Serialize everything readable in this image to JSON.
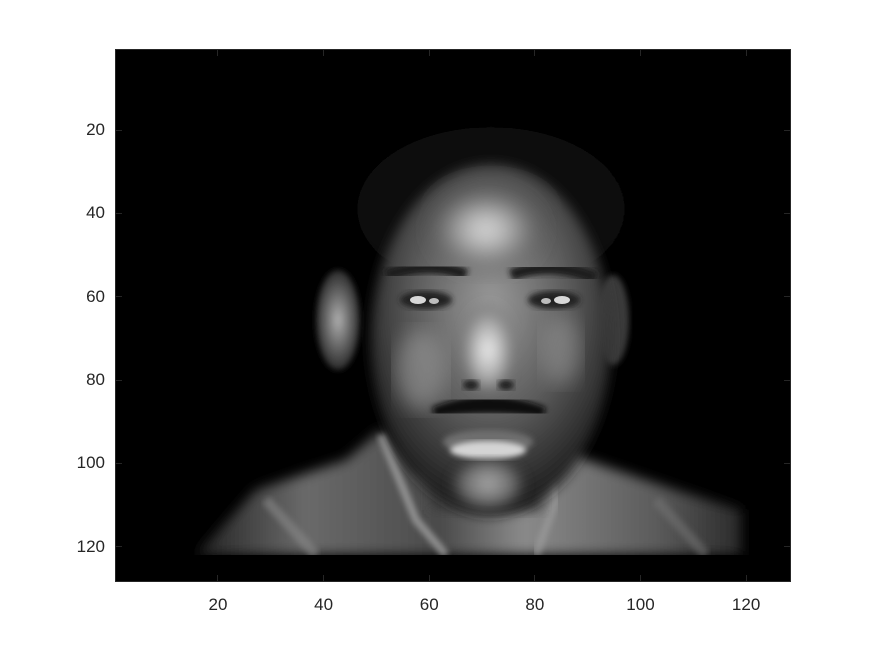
{
  "image": {
    "subject": "grayscale-face",
    "colormap": "gray",
    "background": "#000000",
    "axis_color": "#262626"
  },
  "axes": {
    "x_ticks": [
      {
        "label": "20",
        "value": 20
      },
      {
        "label": "40",
        "value": 40
      },
      {
        "label": "60",
        "value": 60
      },
      {
        "label": "80",
        "value": 80
      },
      {
        "label": "100",
        "value": 100
      },
      {
        "label": "120",
        "value": 120
      }
    ],
    "y_ticks": [
      {
        "label": "20",
        "value": 20
      },
      {
        "label": "40",
        "value": 40
      },
      {
        "label": "60",
        "value": 60
      },
      {
        "label": "80",
        "value": 80
      },
      {
        "label": "100",
        "value": 100
      },
      {
        "label": "120",
        "value": 120
      }
    ],
    "xlim": [
      0.5,
      128.5
    ],
    "ylim": [
      0.5,
      128.5
    ],
    "y_direction": "reverse"
  }
}
